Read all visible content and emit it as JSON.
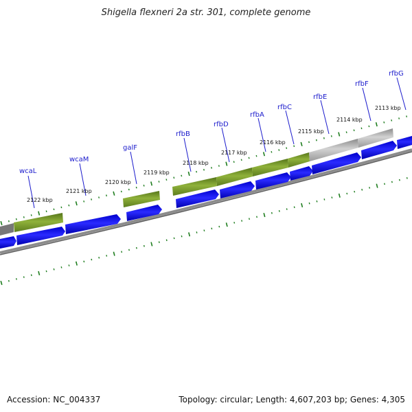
{
  "title": "Shigella flexneri 2a str. 301, complete genome",
  "footer": {
    "accession": "Accession: NC_004337",
    "summary": "Topology: circular; Length: 4,607,203 bp; Genes: 4,305"
  },
  "colors": {
    "gene_label": "#1a1acc",
    "cds": "#0000ee",
    "feature_green": "#6b8e23",
    "feature_gray": "#a8a8a8",
    "backbone": "#7a7a7a",
    "tick": "#1e7d1e"
  },
  "gene_labels": [
    "wcaL",
    "wcaM",
    "galF",
    "rfbB",
    "rfbD",
    "rfbA",
    "rfbC",
    "rfbE",
    "rfbF",
    "rfbG"
  ],
  "kbp_labels": [
    "2122 kbp",
    "2121 kbp",
    "2120 kbp",
    "2119 kbp",
    "2118 kbp",
    "2117 kbp",
    "2116 kbp",
    "2115 kbp",
    "2114 kbp",
    "2113 kbp"
  ]
}
